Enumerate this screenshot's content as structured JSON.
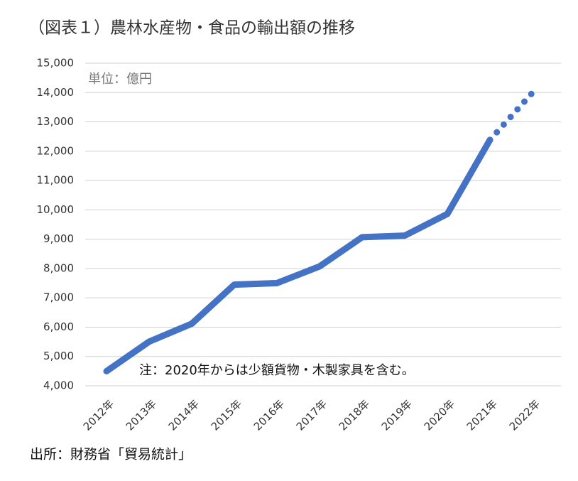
{
  "chart_data": {
    "type": "line",
    "title": "（図表１）農林水産物・食品の輸出額の推移",
    "unit_label": "単位：億円",
    "annotation": "注：2020年からは少額貨物・木製家具を含む。",
    "source": "出所：財務省「貿易統計」",
    "categories": [
      "2012年",
      "2013年",
      "2014年",
      "2015年",
      "2016年",
      "2017年",
      "2018年",
      "2019年",
      "2020年",
      "2021年",
      "2022年"
    ],
    "series": [
      {
        "color": "#4472c4",
        "values": [
          4497,
          5505,
          6117,
          7451,
          7502,
          8071,
          9068,
          9121,
          9860,
          12385,
          null
        ]
      },
      {
        "color": "#4472c4",
        "dotted": true,
        "values": [
          null,
          null,
          null,
          null,
          null,
          null,
          null,
          null,
          null,
          12385,
          14000
        ]
      }
    ],
    "ylim": [
      4000,
      15000
    ],
    "yticks": [
      {
        "value": 4000,
        "label": "4,000"
      },
      {
        "value": 5000,
        "label": "5,000"
      },
      {
        "value": 6000,
        "label": "6,000"
      },
      {
        "value": 7000,
        "label": "7,000"
      },
      {
        "value": 8000,
        "label": "8,000"
      },
      {
        "value": 9000,
        "label": "9,000"
      },
      {
        "value": 10000,
        "label": "10,000"
      },
      {
        "value": 11000,
        "label": "11,000"
      },
      {
        "value": 12000,
        "label": "12,000"
      },
      {
        "value": 13000,
        "label": "13,000"
      },
      {
        "value": 14000,
        "label": "14,000"
      },
      {
        "value": 15000,
        "label": "15,000"
      }
    ],
    "grid": true
  }
}
